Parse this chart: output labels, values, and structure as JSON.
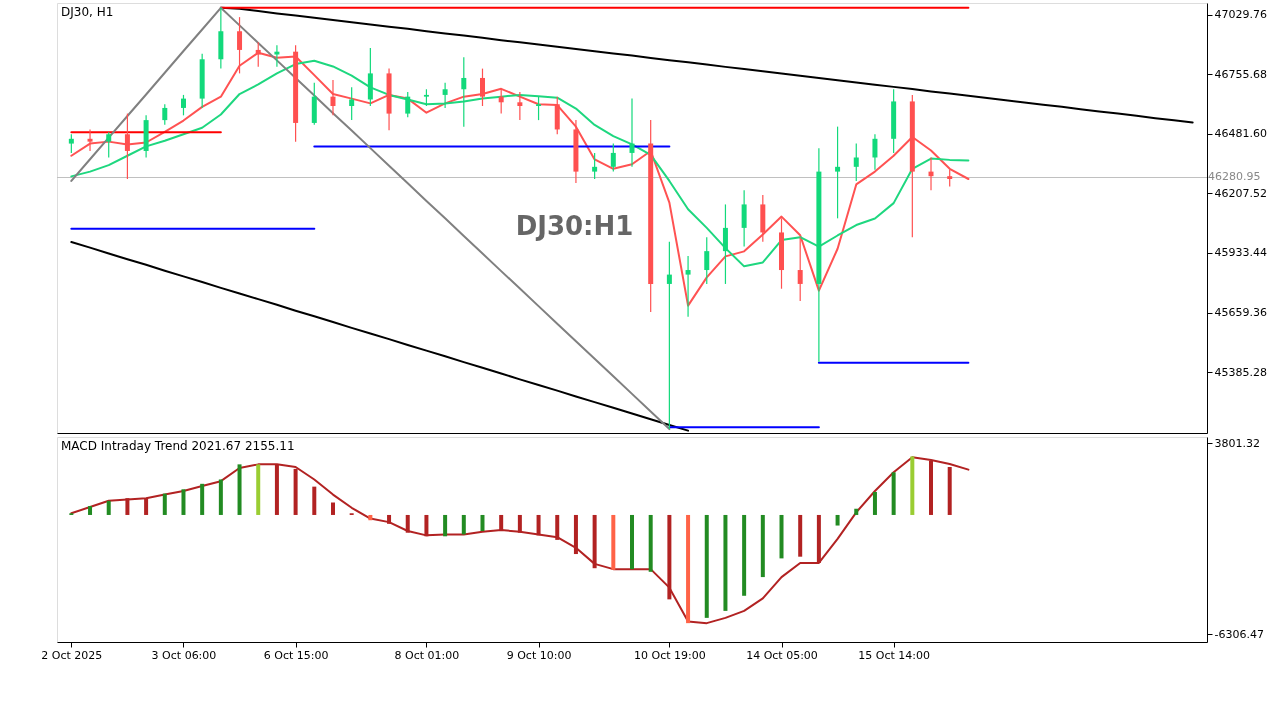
{
  "chart_data": [
    {
      "type": "candlestick",
      "title": "DJ30, H1",
      "annotations": [
        "DJ30:H1"
      ],
      "categories": [
        null,
        null,
        null,
        null,
        null,
        null,
        null,
        null,
        null,
        null,
        null,
        null,
        null,
        null,
        null,
        null,
        null,
        null,
        null,
        null,
        null,
        null,
        null,
        null,
        null,
        null,
        null,
        null,
        null,
        null,
        null,
        null,
        null,
        null,
        null,
        null,
        null,
        null,
        null,
        null,
        null,
        null,
        null,
        null,
        null,
        null,
        null,
        null,
        null,
        null,
        null,
        null,
        null,
        null,
        null,
        null,
        null,
        null,
        null,
        null,
        null
      ],
      "ohlc": [
        [
          46437,
          46480,
          46394,
          46459
        ],
        [
          46459,
          46502,
          46403,
          46446
        ],
        [
          46446,
          46489,
          46373,
          46480
        ],
        [
          46480,
          46575,
          46274,
          46403
        ],
        [
          46403,
          46567,
          46373,
          46545
        ],
        [
          46545,
          46618,
          46524,
          46601
        ],
        [
          46601,
          46661,
          46567,
          46644
        ],
        [
          46644,
          46850,
          46601,
          46825
        ],
        [
          46825,
          47062,
          46782,
          46954
        ],
        [
          46954,
          47019,
          46760,
          46868
        ],
        [
          46868,
          46903,
          46791,
          46847
        ],
        [
          46847,
          46890,
          46791,
          46860
        ],
        [
          46860,
          46890,
          46446,
          46532
        ],
        [
          46532,
          46717,
          46524,
          46653
        ],
        [
          46653,
          46730,
          46567,
          46610
        ],
        [
          46610,
          46696,
          46545,
          46640
        ],
        [
          46640,
          46877,
          46610,
          46760
        ],
        [
          46760,
          46782,
          46498,
          46575
        ],
        [
          46575,
          46674,
          46558,
          46653
        ],
        [
          46653,
          46687,
          46610,
          46661
        ],
        [
          46661,
          46717,
          46601,
          46687
        ],
        [
          46687,
          46834,
          46515,
          46739
        ],
        [
          46739,
          46782,
          46610,
          46653
        ],
        [
          46653,
          46687,
          46575,
          46627
        ],
        [
          46627,
          46674,
          46545,
          46610
        ],
        [
          46610,
          46653,
          46545,
          46618
        ],
        [
          46618,
          46653,
          46480,
          46502
        ],
        [
          46502,
          46545,
          46256,
          46308
        ],
        [
          46308,
          46394,
          46274,
          46330
        ],
        [
          46330,
          46437,
          46308,
          46394
        ],
        [
          46394,
          46644,
          46330,
          46437
        ],
        [
          46437,
          46545,
          45662,
          45791
        ],
        [
          45791,
          45985,
          45123,
          45834
        ],
        [
          45834,
          45920,
          45640,
          45855
        ],
        [
          45855,
          46006,
          45791,
          45942
        ],
        [
          45942,
          46157,
          45791,
          46049
        ],
        [
          46049,
          46222,
          45963,
          46157
        ],
        [
          46157,
          46200,
          45985,
          46028
        ],
        [
          46028,
          46093,
          45769,
          45855
        ],
        [
          45855,
          46006,
          45713,
          45791
        ],
        [
          45791,
          46416,
          45433,
          46308
        ],
        [
          46308,
          46515,
          46093,
          46330
        ],
        [
          46330,
          46437,
          46265,
          46373
        ],
        [
          46373,
          46480,
          46317,
          46459
        ],
        [
          46459,
          46687,
          46394,
          46631
        ],
        [
          46631,
          46661,
          46006,
          46308
        ],
        [
          46308,
          46373,
          46222,
          46287
        ],
        [
          46287,
          46317,
          46239,
          46274
        ],
        null,
        null,
        null,
        null,
        null,
        null,
        null,
        null,
        null,
        null,
        null,
        null,
        null
      ],
      "colors": [
        "#12d97b",
        "#ff5050",
        "#12d97b",
        "#ff5050",
        "#12d97b",
        "#12d97b",
        "#12d97b",
        "#12d97b",
        "#12d97b",
        "#ff5050",
        "#ff5050",
        "#12d97b",
        "#ff5050",
        "#12d97b",
        "#ff5050",
        "#12d97b",
        "#12d97b",
        "#ff5050",
        "#12d97b",
        "#12d97b",
        "#12d97b",
        "#12d97b",
        "#ff5050",
        "#ff5050",
        "#ff5050",
        "#12d97b",
        "#ff5050",
        "#ff5050",
        "#12d97b",
        "#12d97b",
        "#12d97b",
        "#ff5050",
        "#12d97b",
        "#12d97b",
        "#12d97b",
        "#12d97b",
        "#12d97b",
        "#ff5050",
        "#ff5050",
        "#ff5050",
        "#12d97b",
        "#12d97b",
        "#12d97b",
        "#12d97b",
        "#12d97b",
        "#ff5050",
        "#ff5050",
        "#ff5050",
        null,
        null,
        null,
        null,
        null,
        null,
        null,
        null,
        null,
        null,
        null,
        null,
        null
      ],
      "series": [
        {
          "type": "line",
          "color": "#ff5252",
          "values": [
            46381,
            46437,
            46446,
            46433,
            46442,
            46491,
            46543,
            46606,
            46653,
            46795,
            46855,
            46832,
            46838,
            46752,
            46665,
            46644,
            46622,
            46661,
            46644,
            46579,
            46622,
            46653,
            46665,
            46689,
            46653,
            46618,
            46614,
            46515,
            46364,
            46321,
            46342,
            46403,
            46165,
            45691,
            45821,
            45918,
            45941,
            46019,
            46101,
            46015,
            45760,
            45953,
            46249,
            46308,
            46381,
            46467,
            46405,
            46321,
            46274,
            null,
            null,
            null,
            null,
            null,
            null,
            null,
            null,
            null,
            null,
            null,
            null
          ]
        },
        {
          "type": "line",
          "color": "#1ed77f",
          "values": [
            46286,
            46308,
            46338,
            46381,
            46424,
            46450,
            46480,
            46510,
            46571,
            46665,
            46709,
            46760,
            46803,
            46818,
            46792,
            46750,
            46696,
            46661,
            46640,
            46618,
            46622,
            46631,
            46644,
            46653,
            46661,
            46655,
            46648,
            46598,
            46523,
            46471,
            46433,
            46385,
            46265,
            46135,
            46049,
            45956,
            45872,
            45890,
            45993,
            46006,
            45963,
            46014,
            46062,
            46092,
            46163,
            46321,
            46368,
            46362,
            46359,
            null,
            null,
            null,
            null,
            null,
            null,
            null,
            null,
            null,
            null,
            null,
            null
          ]
        },
        {
          "type": "line",
          "color": "#000000",
          "values": [
            null,
            null,
            null,
            null,
            null,
            null,
            null,
            null,
            47062,
            47057,
            47047,
            47036,
            47026,
            47016,
            47006,
            46995,
            46985,
            46975,
            46965,
            46954,
            46944,
            46934,
            46924,
            46913,
            46903,
            46893,
            46883,
            46872,
            46862,
            46852,
            46842,
            46831,
            46821,
            46811,
            46801,
            46790,
            46780,
            46770,
            46760,
            46749,
            46739,
            46729,
            46718,
            46708,
            46698,
            46688,
            46677,
            46667,
            46657,
            46647,
            46636,
            46626,
            46616,
            46606,
            46595,
            46585,
            46575,
            46565,
            46554,
            46544,
            46534
          ]
        },
        {
          "type": "line",
          "color": "#000000",
          "values": [
            45984,
            45958,
            45931,
            45905,
            45879,
            45852,
            45826,
            45800,
            45773,
            45747,
            45721,
            45695,
            45668,
            45642,
            45616,
            45589,
            45563,
            45537,
            45510,
            45484,
            45458,
            45431,
            45405,
            45379,
            45352,
            45326,
            45300,
            45273,
            45247,
            45221,
            45195,
            45168,
            45142,
            45116,
            null,
            null,
            null,
            null,
            null,
            null,
            null,
            null,
            null,
            null,
            null,
            null,
            null,
            null,
            null,
            null,
            null,
            null,
            null,
            null,
            null,
            null,
            null,
            null,
            null,
            null,
            null
          ]
        },
        {
          "type": "line",
          "color": "#ff0000",
          "values": [
            null,
            null,
            null,
            null,
            null,
            null,
            null,
            null,
            47062,
            47062,
            47062,
            47062,
            47062,
            47062,
            47062,
            47062,
            47062,
            47062,
            47062,
            47062,
            47062,
            47062,
            47062,
            47062,
            47062,
            47062,
            47062,
            47062,
            47062,
            47062,
            47062,
            47062,
            47062,
            47062,
            47062,
            47062,
            47062,
            47062,
            47062,
            47062,
            47062,
            47062,
            47062,
            47062,
            47062,
            47062,
            47062,
            47062,
            47062,
            null,
            null,
            null,
            null,
            null,
            null,
            null,
            null,
            null,
            null,
            null,
            null
          ]
        },
        {
          "type": "line",
          "color": "#ff0000",
          "values": [
            46489,
            46489,
            46489,
            46489,
            46489,
            46489,
            46489,
            46489,
            46489,
            null,
            null,
            null,
            null,
            null,
            null,
            null,
            null,
            null,
            null,
            null,
            null,
            null,
            null,
            null,
            null,
            null,
            null,
            null,
            null,
            null,
            null,
            null,
            null,
            null,
            null,
            null,
            null,
            null,
            null,
            null,
            null,
            null,
            null,
            null,
            null,
            null,
            null,
            null,
            null,
            null,
            null,
            null,
            null,
            null,
            null,
            null,
            null,
            null,
            null,
            null,
            null
          ]
        },
        {
          "type": "line",
          "color": "#0000ff",
          "values": [
            46045,
            46045,
            46045,
            46045,
            46045,
            46045,
            46045,
            46045,
            46045,
            46045,
            46045,
            46045,
            46045,
            46045,
            null,
            null,
            null,
            null,
            null,
            null,
            null,
            null,
            null,
            null,
            null,
            null,
            null,
            null,
            null,
            null,
            null,
            null,
            null,
            null,
            null,
            null,
            null,
            null,
            null,
            null,
            null,
            null,
            null,
            null,
            null,
            null,
            null,
            null,
            null,
            null,
            null,
            null,
            null,
            null,
            null,
            null,
            null,
            null,
            null,
            null,
            null
          ]
        },
        {
          "type": "line",
          "color": "#0000ff",
          "values": [
            null,
            null,
            null,
            null,
            null,
            null,
            null,
            null,
            null,
            null,
            null,
            null,
            null,
            46424,
            46424,
            46424,
            46424,
            46424,
            46424,
            46424,
            46424,
            46424,
            46424,
            46424,
            46424,
            46424,
            46424,
            46424,
            46424,
            46424,
            46424,
            46424,
            46424,
            null,
            null,
            null,
            null,
            null,
            null,
            null,
            null,
            null,
            null,
            null,
            null,
            null,
            null,
            null,
            null,
            null,
            null,
            null,
            null,
            null,
            null,
            null,
            null,
            null,
            null,
            null,
            null
          ]
        },
        {
          "type": "line",
          "color": "#0000ff",
          "values": [
            null,
            null,
            null,
            null,
            null,
            null,
            null,
            null,
            null,
            null,
            null,
            null,
            null,
            null,
            null,
            null,
            null,
            null,
            null,
            null,
            null,
            null,
            null,
            null,
            null,
            null,
            null,
            null,
            null,
            null,
            null,
            null,
            45131,
            45131,
            45131,
            45131,
            45131,
            45131,
            45131,
            45131,
            45131,
            null,
            null,
            null,
            null,
            null,
            null,
            null,
            null,
            null,
            null,
            null,
            null,
            null,
            null,
            null,
            null,
            null,
            null,
            null,
            null
          ]
        },
        {
          "type": "line",
          "color": "#0000ff",
          "values": [
            null,
            null,
            null,
            null,
            null,
            null,
            null,
            null,
            null,
            null,
            null,
            null,
            null,
            null,
            null,
            null,
            null,
            null,
            null,
            null,
            null,
            null,
            null,
            null,
            null,
            null,
            null,
            null,
            null,
            null,
            null,
            null,
            null,
            null,
            null,
            null,
            null,
            null,
            null,
            null,
            45428,
            45428,
            45428,
            45428,
            45428,
            45428,
            45428,
            45428,
            45428,
            null,
            null,
            null,
            null,
            null,
            null,
            null,
            null,
            null,
            null,
            null,
            null
          ]
        },
        {
          "type": "line",
          "color": "#808080",
          "values": [
            46265,
            46365,
            46464,
            46564,
            46663,
            46763,
            46863,
            46962,
            47062,
            46981,
            46900,
            46820,
            46739,
            46658,
            46577,
            46497,
            46416,
            46335,
            46254,
            46173,
            46093,
            46012,
            45931,
            45850,
            45770,
            45689,
            45608,
            45527,
            45447,
            45366,
            45285,
            45204,
            45123,
            null,
            null,
            null,
            null,
            null,
            null,
            null,
            null,
            null,
            null,
            null,
            null,
            null,
            null,
            null,
            null,
            null,
            null,
            null,
            null,
            null,
            null,
            null,
            null,
            null,
            null,
            null,
            null
          ]
        }
      ],
      "ref_lines": [
        {
          "axis": "y",
          "value": 46280.95,
          "label": "46280.95",
          "color": "#c0c0c0"
        }
      ],
      "ylim": [
        45105,
        47084
      ],
      "yticks": [
        {
          "value": 47029.76,
          "label": "47029.76"
        },
        {
          "value": 46755.68,
          "label": "46755.68"
        },
        {
          "value": 46481.6,
          "label": "46481.60"
        },
        {
          "value": 46207.52,
          "label": "46207.52"
        },
        {
          "value": 45933.44,
          "label": "45933.44"
        },
        {
          "value": 45659.36,
          "label": "45659.36"
        },
        {
          "value": 45385.28,
          "label": "45385.28"
        }
      ]
    },
    {
      "type": "bar",
      "title": "MACD Intraday Trend  2021.67 2155.11",
      "categories": [
        "2 Oct 2025",
        null,
        null,
        null,
        null,
        null,
        "3 Oct 06:00",
        null,
        null,
        null,
        null,
        null,
        "6 Oct 15:00",
        null,
        null,
        null,
        null,
        null,
        null,
        "8 Oct 01:00",
        null,
        null,
        null,
        null,
        null,
        "9 Oct 10:00",
        null,
        null,
        null,
        null,
        null,
        null,
        "10 Oct 19:00",
        null,
        null,
        null,
        null,
        null,
        "14 Oct 05:00",
        null,
        null,
        null,
        null,
        null,
        "15 Oct 14:00",
        null,
        null,
        null,
        null,
        null,
        null,
        null,
        null,
        null,
        null,
        null,
        null,
        null,
        null,
        null,
        null
      ],
      "values": [
        90,
        470,
        750,
        890,
        890,
        1130,
        1360,
        1650,
        1880,
        2680,
        2680,
        2680,
        2440,
        1500,
        660,
        90,
        -280,
        -470,
        -940,
        -1130,
        -1130,
        -1030,
        -850,
        -800,
        -940,
        -1080,
        -1320,
        -2070,
        -2820,
        -2910,
        -2870,
        -3010,
        -4470,
        -5730,
        -5450,
        -5080,
        -4280,
        -3290,
        -2300,
        -2210,
        -2540,
        -560,
        330,
        1220,
        2260,
        3100,
        2870,
        2540,
        null,
        null,
        null,
        null,
        null,
        null,
        null,
        null,
        null,
        null,
        null,
        null,
        null
      ],
      "colors": [
        "#228b22",
        "#228b22",
        "#228b22",
        "#b22222",
        "#b22222",
        "#228b22",
        "#228b22",
        "#228b22",
        "#228b22",
        "#228b22",
        "#9acd32",
        "#b22222",
        "#b22222",
        "#b22222",
        "#b22222",
        "#b22222",
        "#ff6347",
        "#b22222",
        "#b22222",
        "#b22222",
        "#228b22",
        "#228b22",
        "#228b22",
        "#b22222",
        "#b22222",
        "#b22222",
        "#b22222",
        "#b22222",
        "#b22222",
        "#ff6347",
        "#228b22",
        "#228b22",
        "#b22222",
        "#ff6347",
        "#228b22",
        "#228b22",
        "#228b22",
        "#228b22",
        "#228b22",
        "#b22222",
        "#b22222",
        "#228b22",
        "#228b22",
        "#228b22",
        "#228b22",
        "#9acd32",
        "#b22222",
        "#b22222",
        null,
        null,
        null,
        null,
        null,
        null,
        null,
        null,
        null,
        null,
        null,
        null,
        null
      ],
      "series": [
        {
          "type": "line",
          "color": "#b22222",
          "values": [
            90,
            420,
            750,
            820,
            890,
            1080,
            1270,
            1530,
            1790,
            2490,
            2680,
            2680,
            2540,
            1880,
            1080,
            380,
            -190,
            -380,
            -850,
            -1080,
            -1030,
            -1030,
            -890,
            -800,
            -890,
            -1030,
            -1180,
            -1740,
            -2590,
            -2870,
            -2870,
            -2870,
            -3850,
            -5640,
            -5730,
            -5450,
            -5080,
            -4420,
            -3290,
            -2540,
            -2540,
            -1270,
            140,
            1270,
            2260,
            3060,
            2910,
            2700,
            2400,
            null,
            null,
            null,
            null,
            null,
            null,
            null,
            null,
            null,
            null,
            null,
            null
          ]
        }
      ],
      "ylim": [
        -6728,
        4129
      ],
      "yticks": [
        {
          "value": 3801.32,
          "label": "3801.32"
        },
        {
          "value": -6306.47,
          "label": "-6306.47"
        }
      ]
    }
  ]
}
